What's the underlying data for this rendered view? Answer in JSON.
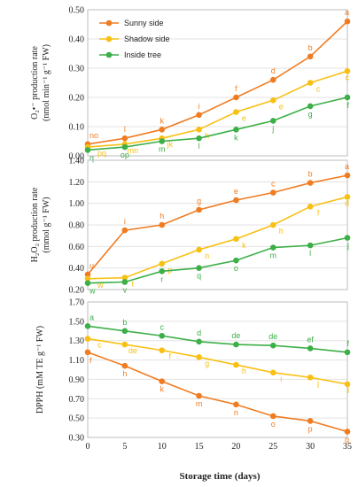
{
  "colors": {
    "sunny": "#f07c22",
    "shadow": "#f8c013",
    "inside": "#3daf48"
  },
  "chart_data": {
    "type": "line",
    "x": [
      0,
      5,
      10,
      15,
      20,
      25,
      30,
      35
    ],
    "xlabel": "Storage time (days)",
    "xticks": [
      "0",
      "5",
      "10",
      "15",
      "20",
      "25",
      "30",
      "35"
    ],
    "legend": {
      "placement": "top-left",
      "entries": [
        "Sunny side",
        "Shadow side",
        "Inside tree"
      ]
    },
    "panels": [
      {
        "ylabel_main": "O₂•⁻ production rate",
        "ylabel_unit": "(nmol min⁻¹ g⁻¹ FW)",
        "ylim": [
          0,
          0.5
        ],
        "yticks": [
          "0.00",
          "0.10",
          "0.20",
          "0.30",
          "0.40",
          "0.50"
        ],
        "series": [
          {
            "name": "Sunny side",
            "values": [
              0.04,
              0.06,
              0.09,
              0.14,
              0.2,
              0.26,
              0.34,
              0.46
            ],
            "labels": [
              "no",
              "l",
              "k",
              "i",
              "f",
              "d",
              "b",
              "a"
            ]
          },
          {
            "name": "Shadow side",
            "values": [
              0.03,
              0.04,
              0.06,
              0.09,
              0.15,
              0.19,
              0.25,
              0.29
            ],
            "labels": [
              "pq",
              "mn",
              "jk",
              "h",
              "e",
              "e",
              "c",
              "c"
            ]
          },
          {
            "name": "Inside tree",
            "values": [
              0.02,
              0.03,
              0.05,
              0.06,
              0.09,
              0.12,
              0.17,
              0.2
            ],
            "labels": [
              "q",
              "op",
              "m",
              "l",
              "k",
              "j",
              "g",
              "f"
            ]
          }
        ]
      },
      {
        "ylabel_main": "H₂O₂ production rate",
        "ylabel_unit": "(mmol g⁻¹ FW)",
        "ylim": [
          0.2,
          1.4
        ],
        "yticks": [
          "0.20",
          "0.40",
          "0.60",
          "0.80",
          "1.00",
          "1.20",
          "1.40"
        ],
        "series": [
          {
            "name": "Sunny side",
            "values": [
              0.34,
              0.75,
              0.8,
              0.94,
              1.03,
              1.1,
              1.19,
              1.26
            ],
            "labels": [
              "u",
              "i",
              "h",
              "g",
              "e",
              "c",
              "b",
              "a"
            ]
          },
          {
            "name": "Shadow side",
            "values": [
              0.3,
              0.31,
              0.44,
              0.57,
              0.67,
              0.8,
              0.97,
              1.06
            ],
            "labels": [
              "w",
              "t",
              "p",
              "n",
              "k",
              "h",
              "f",
              "d"
            ]
          },
          {
            "name": "Inside tree",
            "values": [
              0.26,
              0.27,
              0.37,
              0.4,
              0.47,
              0.59,
              0.61,
              0.68
            ],
            "labels": [
              "w",
              "v",
              "r",
              "q",
              "o",
              "m",
              "l",
              "j"
            ]
          }
        ]
      },
      {
        "ylabel_main": "DPPH (mM TE g⁻¹ FW)",
        "ylabel_unit": "",
        "ylim": [
          0.3,
          1.7
        ],
        "yticks": [
          "0.30",
          "0.50",
          "0.70",
          "0.90",
          "1.10",
          "1.30",
          "1.50",
          "1.70"
        ],
        "series": [
          {
            "name": "Sunny side",
            "values": [
              1.18,
              1.04,
              0.88,
              0.73,
              0.64,
              0.52,
              0.47,
              0.36
            ],
            "labels": [
              "f",
              "h",
              "k",
              "m",
              "n",
              "o",
              "p",
              "q"
            ]
          },
          {
            "name": "Shadow side",
            "values": [
              1.32,
              1.26,
              1.2,
              1.13,
              1.05,
              0.97,
              0.92,
              0.85
            ],
            "labels": [
              "c",
              "de",
              "f",
              "g",
              "h",
              "i",
              "j",
              "l"
            ]
          },
          {
            "name": "Inside tree",
            "values": [
              1.45,
              1.4,
              1.35,
              1.29,
              1.26,
              1.25,
              1.22,
              1.18
            ],
            "labels": [
              "a",
              "b",
              "c",
              "d",
              "de",
              "de",
              "ef",
              "f"
            ]
          }
        ]
      }
    ]
  }
}
